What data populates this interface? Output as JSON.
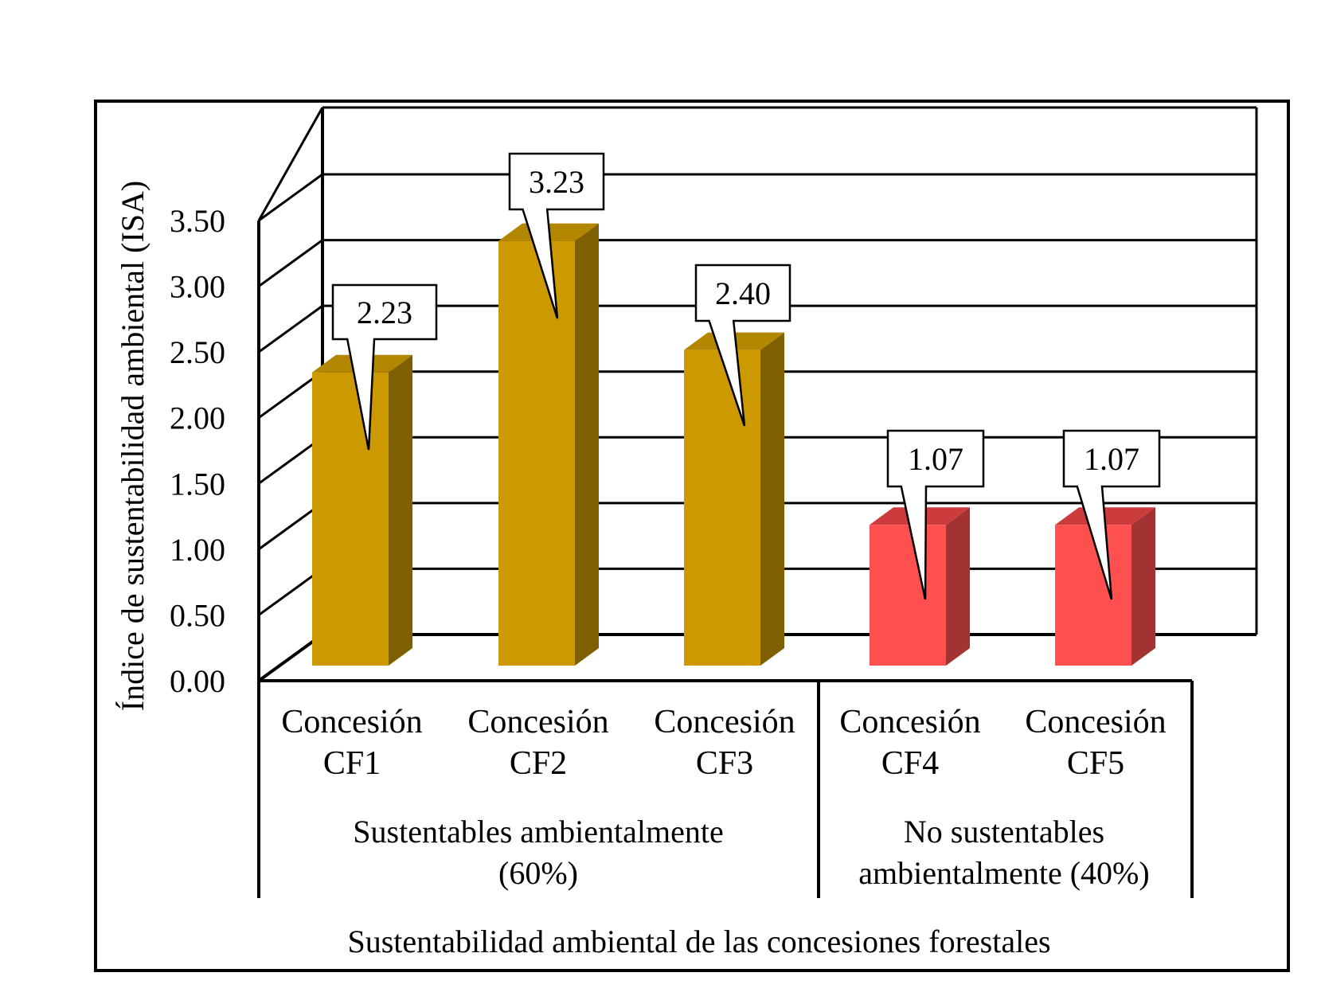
{
  "chart_data": {
    "type": "bar",
    "title": "",
    "categories": [
      {
        "line1": "Concesión",
        "line2": "CF1"
      },
      {
        "line1": "Concesión",
        "line2": "CF2"
      },
      {
        "line1": "Concesión",
        "line2": "CF3"
      },
      {
        "line1": "Concesión",
        "line2": "CF4"
      },
      {
        "line1": "Concesión",
        "line2": "CF5"
      }
    ],
    "values": [
      2.23,
      3.23,
      2.4,
      1.07,
      1.07
    ],
    "data_labels": [
      "2.23",
      "3.23",
      "2.40",
      "1.07",
      "1.07"
    ],
    "bar_colors": [
      "#cc9900",
      "#cc9900",
      "#cc9900",
      "#ff5050",
      "#ff5050"
    ],
    "bar_side_colors": [
      "#7f6000",
      "#7f6000",
      "#7f6000",
      "#a33333",
      "#a33333"
    ],
    "bar_top_colors": [
      "#b38600",
      "#b38600",
      "#b38600",
      "#cc3c3c",
      "#cc3c3c"
    ],
    "groups": [
      {
        "line1": "Sustentables ambientalmente",
        "line2": "(60%)"
      },
      {
        "line1": "No sustentables",
        "line2": "ambientalmente (40%)"
      }
    ],
    "ylabel": "Índice de sustentabilidad  ambiental (ISA)",
    "xlabel": "Sustentabilidad  ambiental de las concesiones forestales",
    "yticks": [
      "0.00",
      "0.50",
      "1.00",
      "1.50",
      "2.00",
      "2.50",
      "3.00",
      "3.50"
    ],
    "ylim": [
      0,
      3.5
    ],
    "grid": true,
    "legend": "none"
  }
}
